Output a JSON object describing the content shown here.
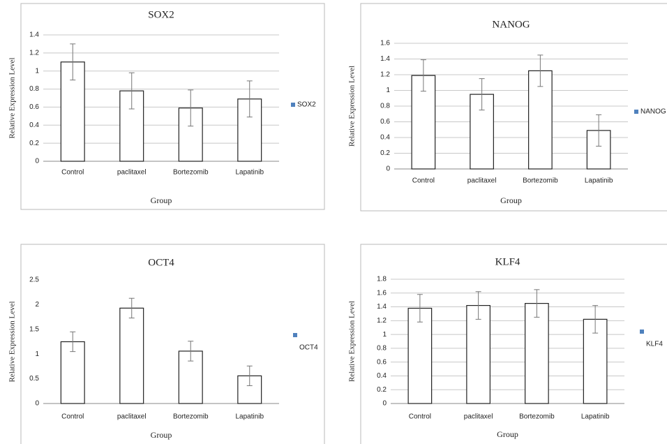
{
  "chart_data": [
    {
      "type": "bar",
      "title": "SOX2",
      "x_label": "Group",
      "y_label": "Relative Expression Level",
      "categories": [
        "Control",
        "paclitaxel",
        "Bortezomib",
        "Lapatinib"
      ],
      "series": [
        {
          "name": "SOX2",
          "color": "#4f81bd",
          "values": [
            1.1,
            0.78,
            0.59,
            0.69
          ],
          "errors": [
            0.2,
            0.2,
            0.2,
            0.2
          ]
        }
      ],
      "ylim": [
        0,
        1.4
      ],
      "yticks": [
        0,
        0.2,
        0.4,
        0.6,
        0.8,
        1,
        1.2,
        1.4
      ],
      "grid": true,
      "legend": "right"
    },
    {
      "type": "bar",
      "title": "NANOG",
      "x_label": "Group",
      "y_label": "Relative Expression Level",
      "categories": [
        "Control",
        "paclitaxel",
        "Bortezomib",
        "Lapatinib"
      ],
      "series": [
        {
          "name": "NANOG",
          "color": "#4f81bd",
          "values": [
            1.19,
            0.95,
            1.25,
            0.49
          ],
          "errors": [
            0.2,
            0.2,
            0.2,
            0.2
          ]
        }
      ],
      "ylim": [
        0,
        1.6
      ],
      "yticks": [
        0,
        0.2,
        0.4,
        0.6,
        0.8,
        1,
        1.2,
        1.4,
        1.6
      ],
      "grid": true,
      "legend": "right"
    },
    {
      "type": "bar",
      "title": "OCT4",
      "x_label": "Group",
      "y_label": "Relative Expression Level",
      "categories": [
        "Control",
        "paclitaxel",
        "Bortezomib",
        "Lapatinib"
      ],
      "series": [
        {
          "name": "OCT4",
          "color": "#4f81bd",
          "values": [
            1.25,
            1.93,
            1.06,
            0.56
          ],
          "errors": [
            0.2,
            0.2,
            0.2,
            0.2
          ]
        }
      ],
      "ylim": [
        0,
        2.5
      ],
      "yticks": [
        0,
        0.5,
        1,
        1.5,
        2,
        2.5
      ],
      "grid": false,
      "legend": "right"
    },
    {
      "type": "bar",
      "title": "KLF4",
      "x_label": "Group",
      "y_label": "Relative Expression Level",
      "categories": [
        "Control",
        "paclitaxel",
        "Bortezomib",
        "Lapatinib"
      ],
      "series": [
        {
          "name": "KLF4",
          "color": "#4f81bd",
          "values": [
            1.38,
            1.42,
            1.45,
            1.22
          ],
          "errors": [
            0.2,
            0.2,
            0.2,
            0.2
          ]
        }
      ],
      "ylim": [
        0,
        1.8
      ],
      "yticks": [
        0,
        0.2,
        0.4,
        0.6,
        0.8,
        1,
        1.2,
        1.4,
        1.6,
        1.8
      ],
      "grid": true,
      "legend": "right"
    }
  ]
}
